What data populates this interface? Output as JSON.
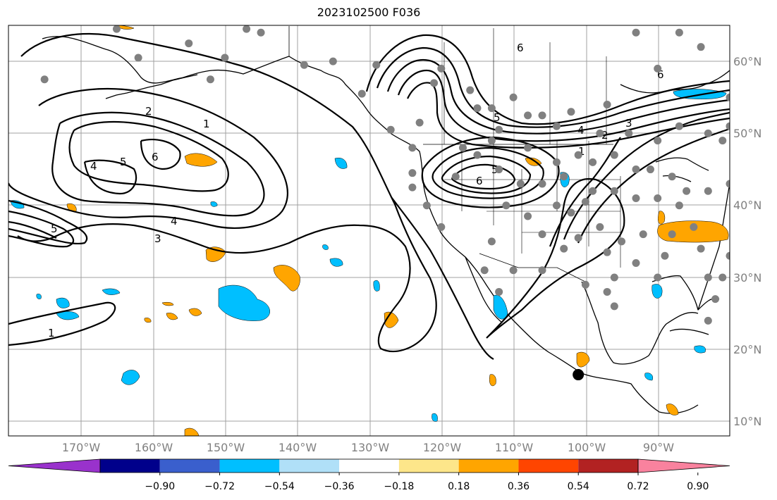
{
  "title": "2023102500 F036",
  "map": {
    "lon_ticks": [
      "170°W",
      "160°W",
      "150°W",
      "140°W",
      "130°W",
      "120°W",
      "110°W",
      "100°W",
      "90°W"
    ],
    "lat_ticks": [
      "60°N",
      "50°N",
      "40°N",
      "30°N",
      "20°N",
      "10°N"
    ],
    "lon_range": [
      -180,
      -80
    ],
    "lat_range": [
      8,
      65
    ],
    "contour_labels": [
      "1",
      "2",
      "3",
      "4",
      "5",
      "6"
    ],
    "marker": {
      "lon": -101,
      "lat": 16.5
    }
  },
  "colorbar": {
    "labels": [
      "−0.90",
      "−0.72",
      "−0.54",
      "−0.36",
      "−0.18",
      "0.18",
      "0.36",
      "0.54",
      "0.72",
      "0.90"
    ],
    "colors": [
      "#9932cc",
      "#00008b",
      "#3a5fcd",
      "#00bfff",
      "#b0e0f8",
      "#ffffff",
      "#fde68a",
      "#ffa500",
      "#ff4500",
      "#b22222",
      "#f9829e"
    ]
  },
  "colors": {
    "negative_fill": "#00bfff",
    "positive_fill": "#ffa500",
    "station": "#808080",
    "grid": "#a0a0a0"
  }
}
